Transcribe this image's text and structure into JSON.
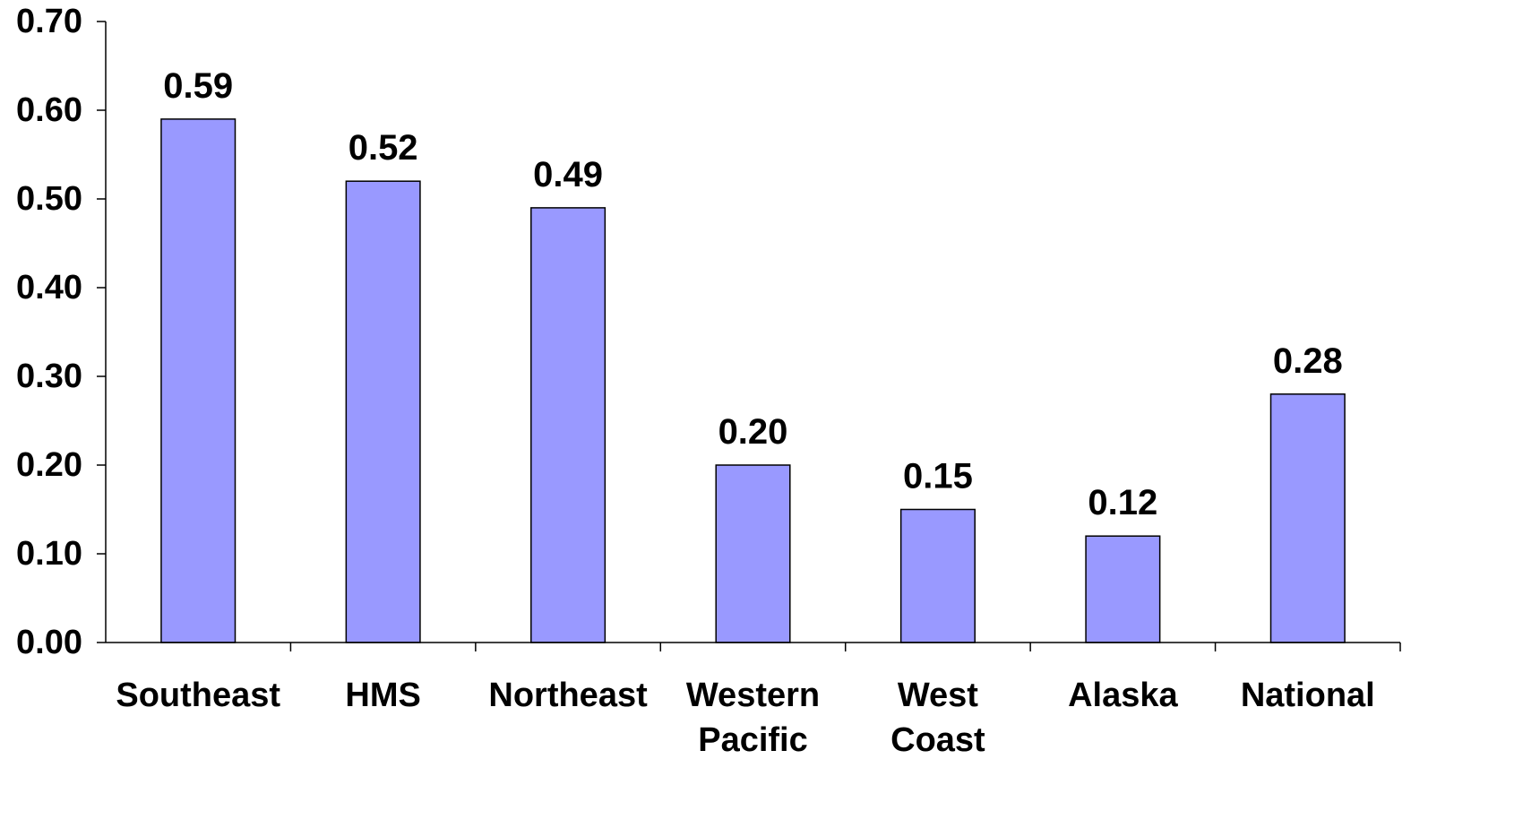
{
  "chart_data": {
    "type": "bar",
    "title": "",
    "xlabel": "",
    "ylabel": "",
    "categories": [
      [
        "Southeast"
      ],
      [
        "HMS"
      ],
      [
        "Northeast"
      ],
      [
        "Western",
        "Pacific"
      ],
      [
        "West",
        "Coast"
      ],
      [
        "Alaska"
      ],
      [
        "National"
      ]
    ],
    "values": [
      0.59,
      0.52,
      0.49,
      0.2,
      0.15,
      0.12,
      0.28
    ],
    "value_labels": [
      "0.59",
      "0.52",
      "0.49",
      "0.20",
      "0.15",
      "0.12",
      "0.28"
    ],
    "yticks": [
      0.0,
      0.1,
      0.2,
      0.3,
      0.4,
      0.5,
      0.6,
      0.7
    ],
    "ytick_labels": [
      "0.00",
      "0.10",
      "0.20",
      "0.30",
      "0.40",
      "0.50",
      "0.60",
      "0.70"
    ],
    "ylim": [
      0,
      0.7
    ],
    "grid": false,
    "legend": "none",
    "colors": {
      "bar_fill": "#9999ff",
      "bar_stroke": "#000000",
      "axis": "#000000"
    }
  }
}
